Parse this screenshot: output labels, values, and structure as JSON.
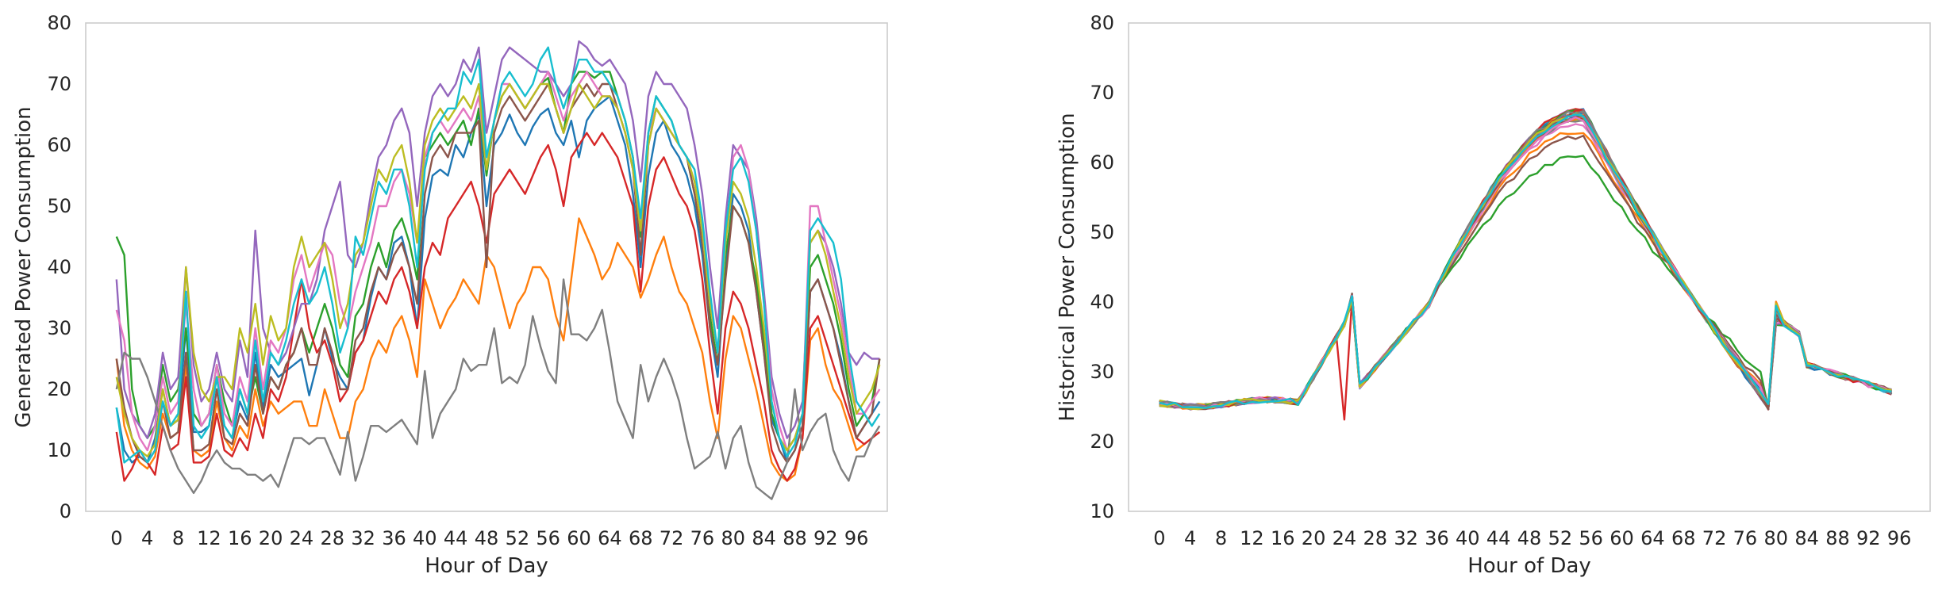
{
  "palette": [
    "#1f77b4",
    "#ff7f0e",
    "#2ca02c",
    "#d62728",
    "#9467bd",
    "#8c564b",
    "#e377c2",
    "#7f7f7f",
    "#bcbd22",
    "#17becf"
  ],
  "chart_data": [
    {
      "type": "line",
      "xlabel": "Hour of Day",
      "ylabel": "Generated Power Consumption",
      "xlim": [
        -4,
        100
      ],
      "ylim": [
        0,
        80
      ],
      "xticks": [
        0,
        4,
        8,
        12,
        16,
        20,
        24,
        28,
        32,
        36,
        40,
        44,
        48,
        52,
        56,
        60,
        64,
        68,
        72,
        76,
        80,
        84,
        88,
        92,
        96
      ],
      "yticks": [
        0,
        10,
        20,
        30,
        40,
        50,
        60,
        70,
        80
      ],
      "grid": false,
      "legend": "none",
      "series_count": 20,
      "series": [
        {
          "values": [
            17,
            10,
            8,
            9,
            8,
            12,
            20,
            14,
            15,
            30,
            13,
            13,
            14,
            22,
            14,
            12,
            18,
            15,
            26,
            17,
            24,
            22,
            23,
            24,
            25,
            19,
            24,
            30,
            25,
            22,
            20,
            26,
            28,
            35,
            40,
            38,
            44,
            45,
            40,
            30,
            48,
            55,
            56,
            55,
            60,
            58,
            62,
            65,
            50,
            60,
            62,
            65,
            62,
            60,
            63,
            65,
            66,
            62,
            60,
            64,
            58,
            64,
            66,
            67,
            68,
            64,
            60,
            52,
            40,
            55,
            62,
            64,
            60,
            58,
            55,
            50,
            42,
            30,
            22,
            40,
            52,
            50,
            46,
            36,
            26,
            15,
            12,
            8,
            10,
            14,
            36,
            38,
            34,
            30,
            25,
            18,
            12,
            14,
            16,
            18
          ]
        },
        {
          "values": [
            25,
            14,
            10,
            8,
            7,
            9,
            16,
            12,
            13,
            24,
            10,
            9,
            10,
            18,
            12,
            10,
            14,
            12,
            20,
            14,
            18,
            16,
            17,
            18,
            18,
            14,
            14,
            20,
            16,
            12,
            12,
            18,
            20,
            25,
            28,
            26,
            30,
            32,
            28,
            22,
            38,
            34,
            30,
            33,
            35,
            38,
            36,
            34,
            42,
            40,
            35,
            30,
            34,
            36,
            40,
            40,
            38,
            32,
            28,
            38,
            48,
            45,
            42,
            38,
            40,
            44,
            42,
            40,
            35,
            38,
            42,
            45,
            40,
            36,
            34,
            30,
            26,
            18,
            12,
            25,
            32,
            30,
            25,
            20,
            14,
            8,
            6,
            5,
            6,
            12,
            28,
            30,
            24,
            20,
            18,
            14,
            10,
            11,
            12,
            13
          ]
        },
        {
          "values": [
            45,
            42,
            20,
            14,
            12,
            14,
            24,
            18,
            20,
            30,
            16,
            14,
            16,
            24,
            18,
            14,
            20,
            16,
            22,
            16,
            22,
            20,
            24,
            26,
            30,
            26,
            30,
            34,
            30,
            24,
            22,
            32,
            34,
            40,
            44,
            40,
            46,
            48,
            44,
            38,
            58,
            60,
            62,
            60,
            62,
            64,
            60,
            66,
            55,
            64,
            68,
            70,
            68,
            66,
            68,
            70,
            71,
            66,
            62,
            70,
            72,
            72,
            71,
            72,
            72,
            68,
            64,
            58,
            45,
            62,
            68,
            66,
            64,
            60,
            58,
            52,
            44,
            32,
            24,
            42,
            50,
            48,
            44,
            38,
            28,
            16,
            12,
            10,
            12,
            16,
            40,
            42,
            38,
            34,
            28,
            20,
            14,
            16,
            18,
            25
          ]
        },
        {
          "values": [
            13,
            5,
            7,
            10,
            8,
            6,
            14,
            10,
            11,
            22,
            8,
            8,
            9,
            16,
            10,
            9,
            12,
            10,
            16,
            12,
            20,
            18,
            22,
            30,
            38,
            30,
            26,
            28,
            24,
            18,
            20,
            26,
            28,
            32,
            36,
            34,
            38,
            40,
            36,
            30,
            40,
            44,
            42,
            48,
            50,
            52,
            54,
            50,
            44,
            52,
            54,
            56,
            54,
            52,
            55,
            58,
            60,
            56,
            50,
            58,
            60,
            62,
            60,
            62,
            60,
            58,
            54,
            50,
            36,
            50,
            56,
            58,
            55,
            52,
            50,
            46,
            38,
            26,
            16,
            30,
            36,
            34,
            30,
            24,
            18,
            10,
            7,
            5,
            7,
            12,
            30,
            32,
            28,
            24,
            20,
            16,
            12,
            11,
            12,
            13
          ]
        },
        {
          "values": [
            38,
            20,
            16,
            14,
            12,
            16,
            26,
            20,
            22,
            40,
            24,
            18,
            20,
            26,
            20,
            18,
            28,
            22,
            46,
            30,
            26,
            24,
            26,
            30,
            34,
            34,
            38,
            46,
            50,
            54,
            42,
            40,
            44,
            52,
            58,
            60,
            64,
            66,
            62,
            50,
            62,
            68,
            70,
            68,
            70,
            74,
            72,
            76,
            62,
            68,
            74,
            76,
            75,
            74,
            73,
            72,
            72,
            70,
            68,
            70,
            77,
            76,
            74,
            73,
            74,
            72,
            70,
            64,
            54,
            68,
            72,
            70,
            70,
            68,
            66,
            60,
            52,
            40,
            30,
            48,
            60,
            58,
            56,
            48,
            36,
            22,
            16,
            12,
            14,
            18,
            44,
            46,
            44,
            40,
            34,
            26,
            24,
            26,
            25,
            25
          ]
        },
        {
          "values": [
            25,
            17,
            12,
            9,
            8,
            10,
            18,
            12,
            13,
            26,
            10,
            10,
            11,
            20,
            12,
            11,
            16,
            14,
            24,
            16,
            22,
            20,
            24,
            26,
            30,
            24,
            24,
            30,
            26,
            20,
            20,
            28,
            30,
            36,
            40,
            38,
            42,
            44,
            40,
            34,
            52,
            58,
            60,
            58,
            62,
            62,
            62,
            64,
            40,
            62,
            66,
            68,
            66,
            64,
            66,
            68,
            70,
            66,
            62,
            66,
            68,
            70,
            68,
            70,
            70,
            66,
            62,
            56,
            42,
            60,
            66,
            64,
            62,
            60,
            58,
            52,
            44,
            30,
            24,
            38,
            50,
            48,
            44,
            36,
            26,
            14,
            10,
            8,
            10,
            14,
            36,
            38,
            34,
            30,
            24,
            18,
            12,
            14,
            16,
            25
          ]
        },
        {
          "values": [
            33,
            28,
            16,
            12,
            10,
            14,
            22,
            16,
            18,
            34,
            20,
            14,
            16,
            24,
            16,
            14,
            22,
            18,
            30,
            20,
            28,
            26,
            30,
            38,
            42,
            36,
            40,
            44,
            42,
            34,
            30,
            36,
            40,
            44,
            50,
            50,
            54,
            56,
            52,
            44,
            58,
            62,
            64,
            62,
            64,
            66,
            64,
            68,
            56,
            64,
            70,
            70,
            68,
            66,
            68,
            70,
            72,
            68,
            64,
            68,
            70,
            72,
            70,
            68,
            68,
            66,
            62,
            56,
            46,
            62,
            66,
            64,
            62,
            60,
            58,
            54,
            46,
            34,
            26,
            44,
            58,
            60,
            56,
            46,
            34,
            20,
            14,
            10,
            12,
            16,
            50,
            50,
            44,
            38,
            32,
            24,
            16,
            16,
            18,
            20
          ]
        },
        {
          "values": [
            20,
            26,
            25,
            25,
            22,
            18,
            14,
            10,
            7,
            5,
            3,
            5,
            8,
            10,
            8,
            7,
            7,
            6,
            6,
            5,
            6,
            4,
            8,
            12,
            12,
            11,
            12,
            12,
            9,
            6,
            13,
            5,
            9,
            14,
            14,
            13,
            14,
            15,
            13,
            11,
            23,
            12,
            16,
            18,
            20,
            25,
            23,
            24,
            24,
            30,
            21,
            22,
            21,
            24,
            32,
            27,
            23,
            21,
            38,
            29,
            29,
            28,
            30,
            33,
            26,
            18,
            15,
            12,
            24,
            18,
            22,
            25,
            22,
            18,
            12,
            7,
            8,
            9,
            13,
            7,
            12,
            14,
            8,
            4,
            3,
            2,
            5,
            8,
            20,
            10,
            13,
            15,
            16,
            10,
            7,
            5,
            9,
            9,
            12,
            14
          ]
        },
        {
          "values": [
            22,
            16,
            12,
            10,
            9,
            11,
            20,
            14,
            15,
            40,
            26,
            20,
            18,
            22,
            22,
            20,
            30,
            26,
            34,
            24,
            32,
            28,
            30,
            40,
            45,
            40,
            42,
            44,
            38,
            30,
            34,
            42,
            44,
            50,
            56,
            54,
            58,
            60,
            54,
            44,
            60,
            64,
            66,
            64,
            66,
            68,
            66,
            70,
            56,
            64,
            68,
            70,
            68,
            66,
            68,
            70,
            70,
            66,
            62,
            66,
            70,
            68,
            66,
            68,
            68,
            66,
            62,
            56,
            46,
            60,
            66,
            64,
            62,
            60,
            58,
            54,
            46,
            34,
            26,
            44,
            54,
            52,
            48,
            40,
            30,
            18,
            12,
            10,
            12,
            16,
            44,
            46,
            42,
            36,
            30,
            22,
            16,
            18,
            20,
            24
          ]
        },
        {
          "values": [
            17,
            8,
            9,
            10,
            8,
            10,
            18,
            14,
            16,
            36,
            14,
            12,
            14,
            22,
            14,
            12,
            20,
            16,
            28,
            18,
            26,
            24,
            28,
            34,
            38,
            34,
            36,
            40,
            34,
            26,
            30,
            45,
            42,
            48,
            54,
            52,
            56,
            56,
            50,
            40,
            56,
            62,
            64,
            66,
            66,
            72,
            70,
            74,
            58,
            64,
            70,
            72,
            70,
            68,
            70,
            74,
            76,
            70,
            66,
            70,
            74,
            74,
            72,
            72,
            70,
            68,
            64,
            58,
            48,
            62,
            68,
            66,
            64,
            60,
            58,
            56,
            48,
            36,
            26,
            46,
            56,
            58,
            54,
            46,
            34,
            18,
            12,
            9,
            11,
            16,
            46,
            48,
            46,
            44,
            38,
            26,
            18,
            16,
            14,
            16
          ]
        }
      ]
    },
    {
      "type": "line",
      "xlabel": "Hour of Day",
      "ylabel": "Historical Power Consumption",
      "xlim": [
        -4,
        100
      ],
      "ylim": [
        10,
        80
      ],
      "xticks": [
        0,
        4,
        8,
        12,
        16,
        20,
        24,
        28,
        32,
        36,
        40,
        44,
        48,
        52,
        56,
        60,
        64,
        68,
        72,
        76,
        80,
        84,
        88,
        92,
        96
      ],
      "yticks": [
        10,
        20,
        30,
        40,
        50,
        60,
        70,
        80
      ],
      "grid": false,
      "legend": "none",
      "series_count": 40
    }
  ]
}
